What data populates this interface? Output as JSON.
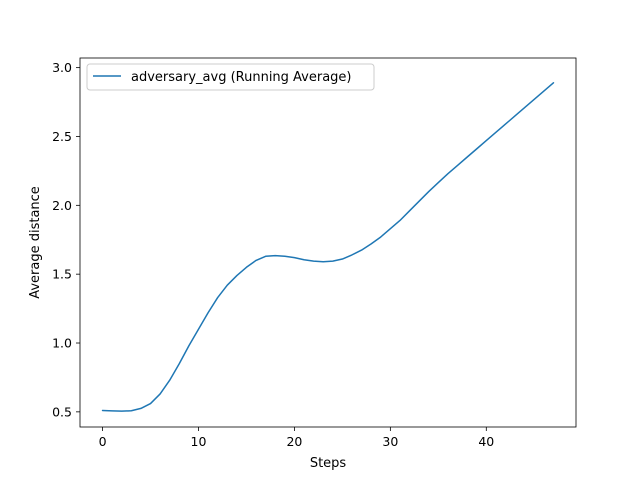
{
  "chart_data": {
    "type": "line",
    "title": "",
    "xlabel": "Steps",
    "ylabel": "Average distance",
    "xlim": [
      -2.35,
      49.35
    ],
    "ylim": [
      0.39,
      3.07
    ],
    "x_ticks": [
      0,
      10,
      20,
      30,
      40
    ],
    "y_ticks": [
      0.5,
      1.0,
      1.5,
      2.0,
      2.5,
      3.0
    ],
    "x_tick_labels": [
      "0",
      "10",
      "20",
      "30",
      "40"
    ],
    "y_tick_labels": [
      "0.5",
      "1.0",
      "1.5",
      "2.0",
      "2.5",
      "3.0"
    ],
    "grid": false,
    "legend_position": "top-left",
    "series": [
      {
        "name": "adversary_avg (Running Average)",
        "color": "#1f77b4",
        "x": [
          0,
          1,
          2,
          3,
          4,
          5,
          6,
          7,
          8,
          9,
          10,
          11,
          12,
          13,
          14,
          15,
          16,
          17,
          18,
          19,
          20,
          21,
          22,
          23,
          24,
          25,
          26,
          27,
          28,
          29,
          30,
          31,
          32,
          33,
          34,
          35,
          36,
          37,
          38,
          39,
          40,
          41,
          42,
          43,
          44,
          45,
          46,
          47
        ],
        "y": [
          0.51,
          0.507,
          0.505,
          0.508,
          0.525,
          0.56,
          0.63,
          0.73,
          0.85,
          0.98,
          1.1,
          1.22,
          1.33,
          1.42,
          1.49,
          1.55,
          1.6,
          1.63,
          1.635,
          1.63,
          1.62,
          1.605,
          1.595,
          1.59,
          1.595,
          1.61,
          1.64,
          1.675,
          1.72,
          1.77,
          1.83,
          1.89,
          1.96,
          2.03,
          2.1,
          2.165,
          2.23,
          2.29,
          2.35,
          2.41,
          2.47,
          2.53,
          2.59,
          2.65,
          2.71,
          2.77,
          2.83,
          2.89
        ]
      }
    ]
  }
}
